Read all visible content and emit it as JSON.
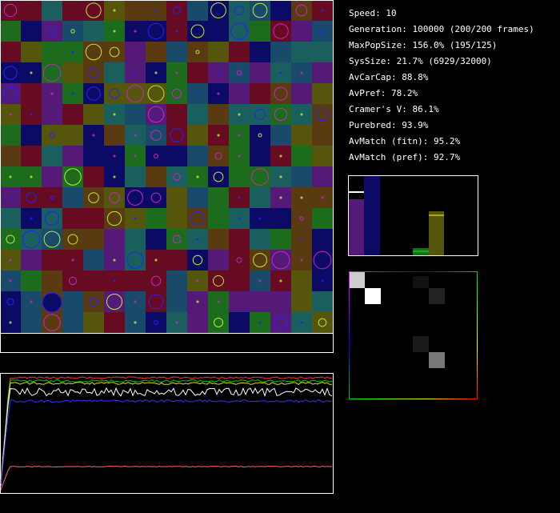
{
  "stats": [
    "Speed: 10",
    "Generation: 100000 (200/200 frames)",
    "MaxPopSize: 156.0% (195/125)",
    "SysSize: 21.7% (6929/32000)",
    "AvCarCap: 88.8%",
    "AvPref: 78.2%",
    "Cramer's V: 86.1%",
    "Purebred: 93.9%",
    "AvMatch (fitn): 95.2%",
    "AvMatch (pref): 92.7%"
  ]
}
